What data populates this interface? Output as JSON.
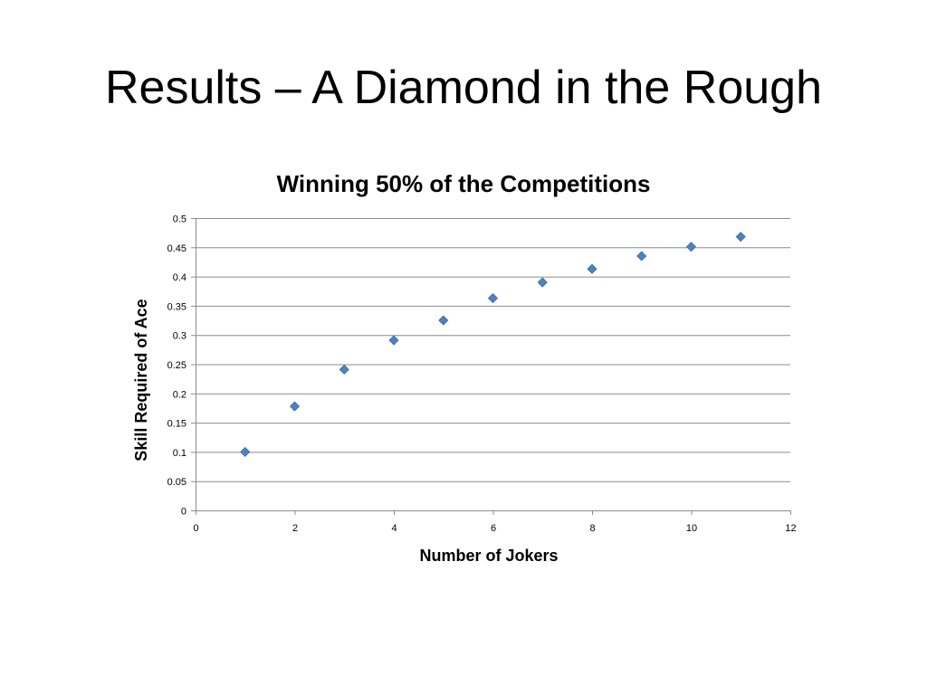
{
  "slide": {
    "title": "Results – A Diamond in the Rough"
  },
  "chart_data": {
    "type": "scatter",
    "title": "Winning 50% of the Competitions",
    "xlabel": "Number of Jokers",
    "ylabel": "Skill Required of Ace",
    "xlim": [
      0,
      12
    ],
    "ylim": [
      0,
      0.5
    ],
    "x_ticks": [
      "0",
      "2",
      "4",
      "6",
      "8",
      "10",
      "12"
    ],
    "y_ticks": [
      "0",
      "0.05",
      "0.1",
      "0.15",
      "0.2",
      "0.25",
      "0.3",
      "0.35",
      "0.4",
      "0.45",
      "0.5"
    ],
    "grid": "horizontal",
    "legend": "none",
    "marker": "diamond",
    "color": "#4F81BD",
    "series": [
      {
        "x": [
          1,
          2,
          3,
          4,
          5,
          6,
          7,
          8,
          9,
          10,
          11
        ],
        "y": [
          0.1,
          0.178,
          0.241,
          0.291,
          0.325,
          0.363,
          0.39,
          0.413,
          0.435,
          0.451,
          0.468
        ]
      }
    ]
  }
}
